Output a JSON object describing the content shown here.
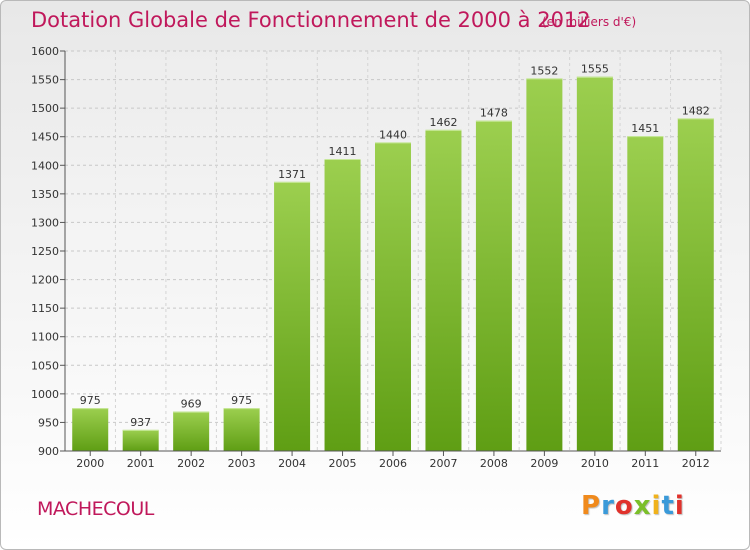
{
  "chart_data": {
    "type": "bar",
    "title": "Dotation Globale de Fonctionnement de 2000 à 2012",
    "unit_label": "(en milliers d'€)",
    "categories": [
      "2000",
      "2001",
      "2002",
      "2003",
      "2004",
      "2005",
      "2006",
      "2007",
      "2008",
      "2009",
      "2010",
      "2011",
      "2012"
    ],
    "values": [
      975,
      937,
      969,
      975,
      1371,
      1411,
      1440,
      1462,
      1478,
      1552,
      1555,
      1451,
      1482
    ],
    "ylim": [
      900,
      1600
    ],
    "yticks": [
      900,
      950,
      1000,
      1050,
      1100,
      1150,
      1200,
      1250,
      1300,
      1350,
      1400,
      1450,
      1500,
      1550,
      1600
    ],
    "xlabel": "",
    "ylabel": "",
    "grid": true,
    "bar_color_top": "#9ccf4f",
    "bar_color_bottom": "#5f9e14"
  },
  "footer": {
    "city": "MACHECOUL",
    "logo_text": "Proxiti"
  },
  "colors": {
    "accent": "#c0185b"
  }
}
